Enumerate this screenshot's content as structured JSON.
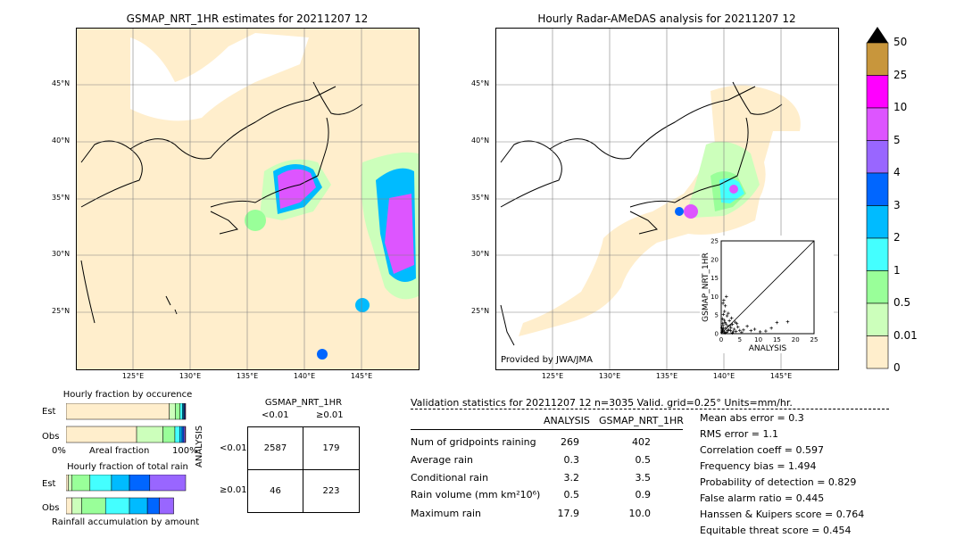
{
  "left_map": {
    "title": "GSMAP_NRT_1HR estimates for 20211207 12",
    "lat_ticks": [
      "45°N",
      "40°N",
      "35°N",
      "30°N",
      "25°N"
    ],
    "lon_ticks": [
      "125°E",
      "130°E",
      "135°E",
      "140°E",
      "145°E"
    ]
  },
  "right_map": {
    "title": "Hourly Radar-AMeDAS analysis for 20211207 12",
    "lat_ticks": [
      "45°N",
      "40°N",
      "35°N",
      "30°N",
      "25°N"
    ],
    "lon_ticks": [
      "125°E",
      "130°E",
      "135°E",
      "140°E",
      "145°E"
    ],
    "credit": "Provided by JWA/JMA"
  },
  "colorbar": {
    "labels": [
      "50",
      "25",
      "10",
      "5",
      "4",
      "3",
      "2",
      "1",
      "0.5",
      "0.01",
      "0"
    ],
    "colors": [
      "#c8963c",
      "#ff00ff",
      "#dd55ff",
      "#9966ff",
      "#0066ff",
      "#00bbff",
      "#44ffff",
      "#99ff99",
      "#ccffbb",
      "#ffeecc"
    ]
  },
  "chart_data": [
    {
      "type": "scatter",
      "title": "",
      "xlabel": "ANALYSIS",
      "ylabel": "GSMAP_NRT_1HR",
      "xlim": [
        0,
        25
      ],
      "ylim": [
        0,
        25
      ],
      "x_ticks": [
        "0",
        "5",
        "10",
        "15",
        "20",
        "25"
      ],
      "y_ticks": [
        "0",
        "5",
        "10",
        "15",
        "20",
        "25"
      ],
      "points": [
        [
          0.2,
          0.3
        ],
        [
          0.4,
          1.0
        ],
        [
          0.5,
          2.2
        ],
        [
          0.8,
          0.5
        ],
        [
          1.0,
          3.0
        ],
        [
          1.2,
          1.5
        ],
        [
          1.5,
          0.4
        ],
        [
          0.3,
          4.0
        ],
        [
          0.6,
          5.2
        ],
        [
          1.8,
          2.0
        ],
        [
          2.0,
          1.0
        ],
        [
          2.2,
          3.5
        ],
        [
          0.9,
          6.0
        ],
        [
          1.1,
          7.5
        ],
        [
          0.5,
          8.2
        ],
        [
          2.5,
          0.8
        ],
        [
          3.0,
          2.5
        ],
        [
          3.2,
          0.5
        ],
        [
          3.5,
          1.2
        ],
        [
          0.7,
          9.0
        ],
        [
          1.4,
          10.0
        ],
        [
          4.0,
          0.6
        ],
        [
          4.5,
          1.8
        ],
        [
          5.0,
          0.9
        ],
        [
          5.5,
          0.3
        ],
        [
          6.0,
          1.0
        ],
        [
          2.8,
          4.2
        ],
        [
          1.6,
          4.8
        ],
        [
          0.4,
          2.8
        ],
        [
          1.9,
          5.5
        ],
        [
          3.8,
          3.1
        ],
        [
          7.0,
          2.0
        ],
        [
          8.0,
          0.8
        ],
        [
          9.0,
          1.2
        ],
        [
          10.5,
          0.5
        ],
        [
          12.0,
          0.7
        ],
        [
          13.5,
          1.5
        ],
        [
          15.0,
          3.0
        ],
        [
          17.9,
          3.2
        ],
        [
          0.2,
          1.6
        ],
        [
          0.3,
          0.8
        ],
        [
          0.6,
          1.4
        ],
        [
          1.0,
          0.2
        ],
        [
          1.3,
          2.6
        ],
        [
          2.4,
          2.2
        ],
        [
          2.6,
          1.6
        ],
        [
          3.0,
          0.2
        ],
        [
          4.2,
          2.7
        ],
        [
          0.8,
          3.6
        ],
        [
          1.7,
          0.9
        ]
      ]
    },
    {
      "type": "bar",
      "title": "Hourly fraction by occurence",
      "categories": [
        "Est",
        "Obs"
      ],
      "xlabel": "Areal fraction",
      "x_ticks": [
        "0%",
        "100%"
      ],
      "series": [
        {
          "values": [
            0.863,
            0.59
          ]
        },
        {
          "values": [
            0.05,
            0.22
          ]
        },
        {
          "values": [
            0.04,
            0.1
          ]
        },
        {
          "values": [
            0.02,
            0.04
          ]
        },
        {
          "values": [
            0.01,
            0.02
          ]
        },
        {
          "values": [
            0.007,
            0.015
          ]
        },
        {
          "values": [
            0.005,
            0.01
          ]
        },
        {
          "values": [
            0.005,
            0.005
          ]
        }
      ]
    },
    {
      "type": "bar",
      "title": "Hourly fraction of total rain",
      "categories": [
        "Est",
        "Obs"
      ],
      "xlabel": "Rainfall accumulation by amount",
      "series": [
        {
          "values": [
            0.02,
            0.05
          ]
        },
        {
          "values": [
            0.03,
            0.08
          ]
        },
        {
          "values": [
            0.15,
            0.2
          ]
        },
        {
          "values": [
            0.18,
            0.2
          ]
        },
        {
          "values": [
            0.15,
            0.15
          ]
        },
        {
          "values": [
            0.17,
            0.1
          ]
        },
        {
          "values": [
            0.3,
            0.12
          ]
        }
      ]
    },
    {
      "type": "table",
      "title": "GSMAP_NRT_1HR",
      "col_headers": [
        "<0.01",
        "≥0.01"
      ],
      "row_axis_label": "ANALYSIS",
      "row_headers": [
        "<0.01",
        "≥0.01"
      ],
      "cells": [
        [
          "2587",
          "179"
        ],
        [
          "46",
          "223"
        ]
      ]
    }
  ],
  "stats": {
    "header": "Validation statistics for 20211207 12  n=3035 Valid. grid=0.25° Units=mm/hr.",
    "col_analysis": "ANALYSIS",
    "col_gsmap": "GSMAP_NRT_1HR",
    "rows": [
      {
        "label": "Num of gridpoints raining",
        "a": "269",
        "g": "402"
      },
      {
        "label": "Average rain",
        "a": "0.3",
        "g": "0.5"
      },
      {
        "label": "Conditional rain",
        "a": "3.2",
        "g": "3.5"
      },
      {
        "label": "Rain volume (mm km²10⁶)",
        "a": "0.5",
        "g": "0.9"
      },
      {
        "label": "Maximum rain",
        "a": "17.9",
        "g": "10.0"
      }
    ],
    "scores": [
      "Mean abs error =    0.3",
      "RMS error =    1.1",
      "Correlation coeff =  0.597",
      "Frequency bias =  1.494",
      "Probability of detection =  0.829",
      "False alarm ratio =  0.445",
      "Hanssen & Kuipers score =  0.764",
      "Equitable threat score =  0.454"
    ]
  }
}
